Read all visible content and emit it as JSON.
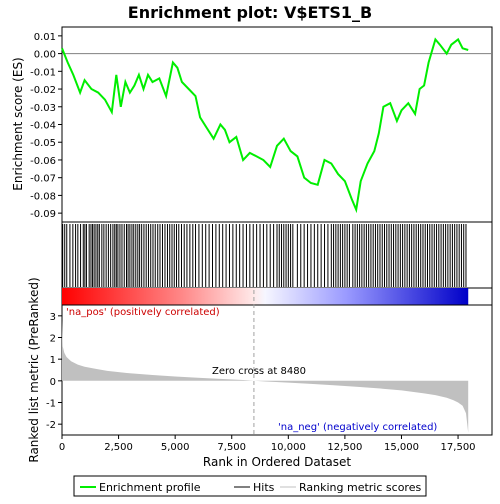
{
  "chart_data": {
    "type": "line",
    "title": "Enrichment plot: V$ETS1_B",
    "es_panel": {
      "ylabel": "Enrichment score (ES)",
      "ylim": [
        -0.095,
        0.015
      ],
      "yticks": [
        "0.01",
        "0.00",
        "-0.01",
        "-0.02",
        "-0.03",
        "-0.04",
        "-0.05",
        "-0.06",
        "-0.07",
        "-0.08",
        "-0.09"
      ],
      "ytick_values": [
        0.01,
        0.0,
        -0.01,
        -0.02,
        -0.03,
        -0.04,
        -0.05,
        -0.06,
        -0.07,
        -0.08,
        -0.09
      ],
      "series": [
        {
          "name": "Enrichment profile",
          "color": "#00ee00",
          "x": [
            0,
            250,
            500,
            800,
            1000,
            1300,
            1600,
            1900,
            2200,
            2400,
            2600,
            2800,
            3000,
            3200,
            3400,
            3600,
            3800,
            4000,
            4300,
            4600,
            4900,
            5100,
            5300,
            5600,
            5900,
            6100,
            6400,
            6700,
            7000,
            7200,
            7400,
            7700,
            8000,
            8300,
            8600,
            8900,
            9200,
            9500,
            9800,
            10100,
            10400,
            10700,
            11000,
            11300,
            11600,
            11900,
            12200,
            12500,
            12800,
            13000,
            13200,
            13500,
            13800,
            14000,
            14200,
            14500,
            14800,
            15000,
            15300,
            15600,
            15800,
            16000,
            16200,
            16500,
            16700,
            17000,
            17200,
            17500,
            17700,
            17950
          ],
          "values": [
            0.003,
            -0.005,
            -0.012,
            -0.022,
            -0.015,
            -0.02,
            -0.022,
            -0.026,
            -0.033,
            -0.012,
            -0.03,
            -0.016,
            -0.022,
            -0.018,
            -0.012,
            -0.02,
            -0.012,
            -0.016,
            -0.014,
            -0.024,
            -0.005,
            -0.008,
            -0.016,
            -0.02,
            -0.024,
            -0.036,
            -0.042,
            -0.048,
            -0.04,
            -0.043,
            -0.05,
            -0.047,
            -0.06,
            -0.056,
            -0.058,
            -0.06,
            -0.064,
            -0.052,
            -0.048,
            -0.055,
            -0.058,
            -0.07,
            -0.073,
            -0.074,
            -0.06,
            -0.062,
            -0.068,
            -0.072,
            -0.082,
            -0.088,
            -0.072,
            -0.062,
            -0.055,
            -0.045,
            -0.03,
            -0.028,
            -0.038,
            -0.032,
            -0.028,
            -0.034,
            -0.02,
            -0.018,
            -0.005,
            0.008,
            0.005,
            0.0,
            0.005,
            0.008,
            0.003,
            0.002
          ]
        }
      ],
      "zero_line": 0.0
    },
    "hits": {
      "label": "Hits",
      "color": "#000000",
      "positions": [
        30,
        120,
        210,
        350,
        480,
        600,
        700,
        820,
        940,
        1010,
        1080,
        1200,
        1280,
        1350,
        1420,
        1500,
        1580,
        1650,
        1760,
        1850,
        1950,
        2050,
        2150,
        2250,
        2330,
        2400,
        2470,
        2560,
        2650,
        2750,
        2850,
        2920,
        3000,
        3090,
        3170,
        3260,
        3350,
        3430,
        3520,
        3620,
        3720,
        3820,
        3920,
        4020,
        4120,
        4230,
        4330,
        4440,
        4550,
        4660,
        4760,
        4860,
        4960,
        5060,
        5160,
        5280,
        5400,
        5520,
        5650,
        5780,
        5900,
        6050,
        6200,
        6350,
        6500,
        6650,
        6800,
        6950,
        7100,
        7250,
        7400,
        7550,
        7700,
        7850,
        8000,
        8150,
        8300,
        8450,
        8600,
        8750,
        8900,
        9050,
        9200,
        9350,
        9500,
        9600,
        9700,
        9800,
        9900,
        10000,
        10100,
        10200,
        10400,
        10550,
        10700,
        10850,
        11000,
        11150,
        11300,
        11450,
        11600,
        11750,
        11900,
        12000,
        12100,
        12200,
        12300,
        12400,
        12500,
        12600,
        12700,
        12850,
        12950,
        13050,
        13150,
        13250,
        13350,
        13450,
        13550,
        13650,
        13750,
        13850,
        13950,
        14050,
        14150,
        14250,
        14350,
        14450,
        14550,
        14650,
        14750,
        14850,
        14950,
        15050,
        15150,
        15250,
        15350,
        15450,
        15550,
        15650,
        15750,
        15850,
        15950,
        16050,
        16150,
        16250,
        16350,
        16450,
        16550,
        16650,
        16750,
        16850,
        16950,
        17050,
        17150,
        17250,
        17350,
        17450,
        17550,
        17650,
        17750,
        17850
      ]
    },
    "rank_metric": {
      "label": "Ranking metric scores",
      "color": "#c0c0c0",
      "ylabel": "Ranked list metric (PreRanked)",
      "ylim": [
        -2.5,
        3.5
      ],
      "yticks": [
        "3",
        "2",
        "1",
        "0",
        "-1",
        "-2"
      ],
      "ytick_values": [
        3,
        2,
        1,
        0,
        -1,
        -2
      ],
      "x": [
        0,
        30,
        100,
        200,
        400,
        700,
        1000,
        1500,
        2000,
        3000,
        4000,
        5000,
        6000,
        7000,
        8000,
        8480,
        9000,
        10000,
        11000,
        12000,
        13000,
        14000,
        15000,
        16000,
        16500,
        17000,
        17300,
        17500,
        17700,
        17850,
        17950
      ],
      "values": [
        2.8,
        1.6,
        1.3,
        1.1,
        0.9,
        0.75,
        0.65,
        0.55,
        0.46,
        0.35,
        0.27,
        0.2,
        0.14,
        0.09,
        0.04,
        0.0,
        -0.03,
        -0.08,
        -0.14,
        -0.2,
        -0.27,
        -0.35,
        -0.44,
        -0.58,
        -0.66,
        -0.78,
        -0.9,
        -1.0,
        -1.15,
        -1.5,
        -2.4
      ]
    },
    "x_axis": {
      "label": "Rank in Ordered Dataset",
      "xlim": [
        0,
        19000
      ],
      "xticks": [
        "0",
        "2,500",
        "5,000",
        "7,500",
        "10,000",
        "12,500",
        "15,000",
        "17,500"
      ],
      "xtick_values": [
        0,
        2500,
        5000,
        7500,
        10000,
        12500,
        15000,
        17500
      ]
    },
    "annotations": {
      "na_pos": "'na_pos' (positively correlated)",
      "na_neg": "'na_neg' (negatively correlated)",
      "zero_cross": "Zero cross at 8480",
      "zero_cross_value": 8480
    },
    "gradient_colors": {
      "pos": "#ff0000",
      "neg": "#0000ff"
    },
    "legend": {
      "position": "bottom",
      "items": [
        "Enrichment profile",
        "Hits",
        "Ranking metric scores"
      ]
    }
  }
}
